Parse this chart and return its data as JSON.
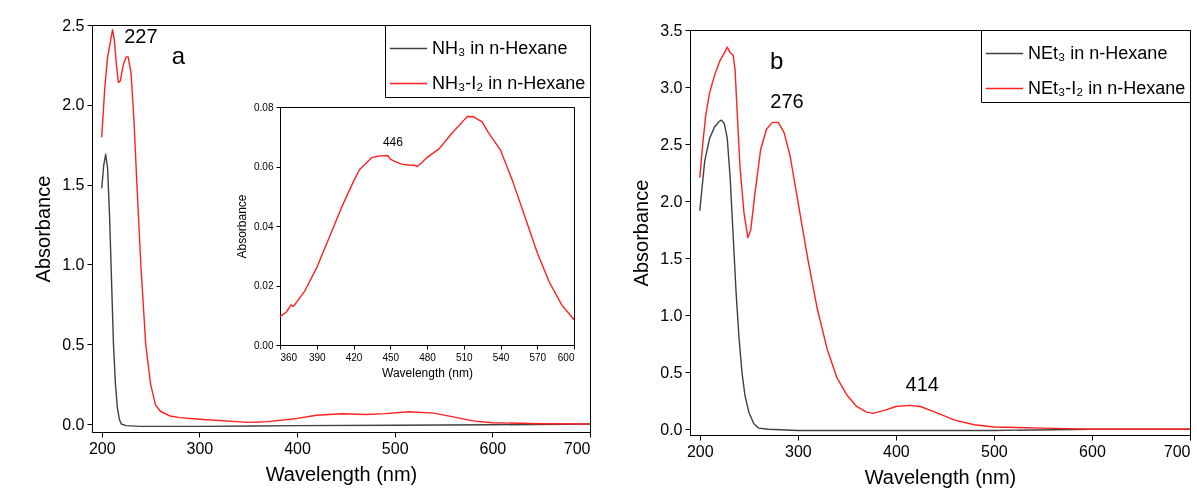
{
  "chart_data": [
    {
      "type": "line",
      "xlabel": "Wavelength (nm)",
      "ylabel": "Absorbance",
      "xlim": [
        190,
        700
      ],
      "ylim": [
        -0.05,
        2.5
      ],
      "xticks": [
        200,
        300,
        400,
        500,
        600,
        700
      ],
      "yticks": [
        {
          "value": 0,
          "label": "0.0"
        },
        0.5,
        {
          "value": 1,
          "label": "1.0"
        },
        1.5,
        {
          "value": 2,
          "label": "2.0"
        },
        2.5
      ],
      "legend": "top right",
      "annotations": [
        {
          "text": "227",
          "x": 227,
          "y": 2.3
        },
        "a"
      ],
      "series": [
        {
          "name": "NH₃ in n-Hexane",
          "color": "#404040",
          "x": [
            200,
            202,
            204,
            206,
            208,
            210,
            212,
            214,
            216,
            218,
            220,
            225,
            240,
            300,
            400,
            500,
            600,
            700
          ],
          "values": [
            1.48,
            1.62,
            1.69,
            1.6,
            1.3,
            0.9,
            0.5,
            0.25,
            0.1,
            0.03,
            0.0,
            -0.01,
            -0.015,
            -0.015,
            -0.01,
            -0.008,
            -0.005,
            0.0
          ]
        },
        {
          "name": "NH₃-I₂ in n-Hexane",
          "color": "#ff2020",
          "x": [
            200,
            203,
            206,
            209,
            211,
            213,
            215,
            217,
            219,
            222,
            225,
            227,
            230,
            233,
            236,
            240,
            245,
            250,
            255,
            260,
            270,
            280,
            300,
            350,
            370,
            400,
            420,
            446,
            470,
            490,
            515,
            540,
            560,
            580,
            600,
            650,
            700
          ],
          "values": [
            1.8,
            2.1,
            2.3,
            2.4,
            2.47,
            2.4,
            2.25,
            2.14,
            2.15,
            2.25,
            2.3,
            2.3,
            2.2,
            1.9,
            1.5,
            1.0,
            0.5,
            0.25,
            0.12,
            0.08,
            0.05,
            0.04,
            0.03,
            0.01,
            0.015,
            0.035,
            0.055,
            0.064,
            0.06,
            0.065,
            0.077,
            0.068,
            0.045,
            0.02,
            0.008,
            0.002,
            0.0
          ]
        }
      ]
    },
    {
      "type": "line",
      "xlabel": "Wavelength (nm)",
      "ylabel": "Absorbance",
      "xlim": [
        360,
        600
      ],
      "ylim": [
        0,
        0.08
      ],
      "xticks": [
        360,
        390,
        420,
        450,
        480,
        510,
        540,
        570,
        600
      ],
      "yticks": [
        {
          "value": 0,
          "label": "0.00"
        },
        {
          "value": 0.02,
          "label": "0.02"
        },
        {
          "value": 0.04,
          "label": "0.04"
        },
        {
          "value": 0.06,
          "label": "0.06"
        },
        {
          "value": 0.08,
          "label": "0.08"
        }
      ],
      "annotations": [
        {
          "text": "446",
          "x": 446,
          "y": 0.0637
        }
      ],
      "series": [
        {
          "color": "#ff2020",
          "x": [
            360,
            365,
            369,
            371,
            380,
            390,
            400,
            410,
            420,
            425,
            430,
            435,
            440,
            448,
            450,
            455,
            460,
            465,
            470,
            472,
            475,
            480,
            490,
            500,
            510,
            513,
            518,
            525,
            530,
            540,
            550,
            560,
            570,
            580,
            590,
            600
          ],
          "values": [
            0.0095,
            0.011,
            0.0135,
            0.013,
            0.018,
            0.026,
            0.036,
            0.046,
            0.055,
            0.059,
            0.061,
            0.063,
            0.0635,
            0.0637,
            0.0625,
            0.0615,
            0.0607,
            0.0605,
            0.0604,
            0.06,
            0.061,
            0.063,
            0.066,
            0.071,
            0.0755,
            0.0768,
            0.0767,
            0.075,
            0.0715,
            0.0655,
            0.055,
            0.043,
            0.031,
            0.021,
            0.0135,
            0.0085
          ]
        }
      ]
    },
    {
      "type": "line",
      "xlabel": "Wavelength (nm)",
      "ylabel": "Absorbance",
      "xlim": [
        190,
        700
      ],
      "ylim": [
        -0.05,
        3.5
      ],
      "xticks": [
        200,
        300,
        400,
        500,
        600,
        700
      ],
      "yticks": [
        {
          "value": 0,
          "label": "0.0"
        },
        0.5,
        {
          "value": 1,
          "label": "1.0"
        },
        1.5,
        {
          "value": 2,
          "label": "2.0"
        },
        2.5,
        {
          "value": 3,
          "label": "3.0"
        },
        3.5
      ],
      "legend": "top right",
      "annotations": [
        {
          "text": "276",
          "x": 276,
          "y": 2.69
        },
        {
          "text": "414",
          "x": 414,
          "y": 0.21
        },
        "b"
      ],
      "series": [
        {
          "name": "NEt₃ in n-Hexane",
          "color": "#404040",
          "x": [
            200,
            205,
            210,
            215,
            220,
            222,
            225,
            228,
            231,
            234,
            237,
            240,
            243,
            246,
            250,
            255,
            260,
            270,
            300,
            400,
            500,
            600,
            700
          ],
          "values": [
            1.92,
            2.35,
            2.55,
            2.65,
            2.7,
            2.71,
            2.68,
            2.55,
            2.2,
            1.7,
            1.2,
            0.8,
            0.5,
            0.3,
            0.15,
            0.05,
            0.01,
            0.0,
            -0.01,
            -0.01,
            -0.01,
            0.0,
            0.0
          ]
        },
        {
          "name": "NEt₃-I₂ in n-Hexane",
          "color": "#ff2020",
          "x": [
            200,
            203,
            206,
            210,
            215,
            220,
            225,
            228,
            231,
            234,
            236,
            238,
            241,
            245,
            249,
            252,
            256,
            262,
            268,
            274,
            280,
            286,
            292,
            300,
            310,
            320,
            330,
            340,
            350,
            360,
            370,
            377,
            390,
            400,
            414,
            425,
            440,
            460,
            480,
            500,
            550,
            600,
            700
          ],
          "values": [
            2.21,
            2.5,
            2.75,
            2.95,
            3.1,
            3.22,
            3.3,
            3.35,
            3.3,
            3.28,
            3.15,
            2.8,
            2.3,
            1.9,
            1.68,
            1.75,
            2.05,
            2.45,
            2.63,
            2.69,
            2.69,
            2.6,
            2.4,
            2.0,
            1.5,
            1.05,
            0.7,
            0.45,
            0.3,
            0.2,
            0.15,
            0.14,
            0.17,
            0.2,
            0.21,
            0.2,
            0.15,
            0.08,
            0.04,
            0.02,
            0.01,
            0.0,
            0.0
          ]
        }
      ]
    }
  ]
}
